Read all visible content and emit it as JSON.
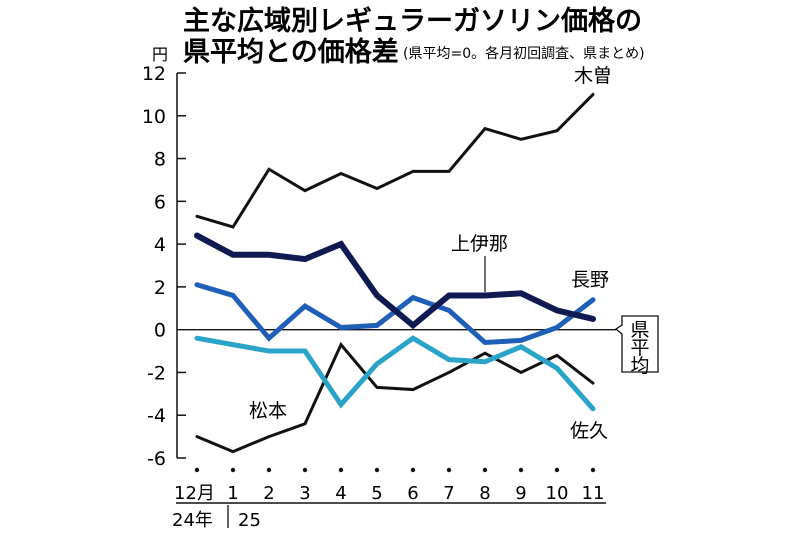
{
  "chart_data": {
    "type": "line",
    "title_line1": "主な広域別レギュラーガソリン価格の",
    "title_line2": "県平均との価格差",
    "subtitle": "(県平均=0。各月初回調査、県まとめ)",
    "ylabel": "円",
    "xlabel": "",
    "ylim": [
      -6,
      12
    ],
    "yticks": [
      12,
      10,
      8,
      6,
      4,
      2,
      0,
      -2,
      -4,
      -6
    ],
    "ytick_labels": [
      "12",
      "10",
      "8",
      "6",
      "4",
      "2",
      "0",
      "-2",
      "-4",
      "-6"
    ],
    "categories": [
      "12月",
      "1",
      "2",
      "3",
      "4",
      "5",
      "6",
      "7",
      "8",
      "9",
      "10",
      "11"
    ],
    "year_labels": [
      "24年",
      "25"
    ],
    "baseline_label": [
      "県",
      "平",
      "均"
    ],
    "grid": false,
    "series": [
      {
        "name": "木曽",
        "color": "#111111",
        "values": [
          5.3,
          4.8,
          7.5,
          6.5,
          7.3,
          6.6,
          7.4,
          7.4,
          9.4,
          8.9,
          9.3,
          11.0
        ]
      },
      {
        "name": "上伊那",
        "color": "#101a52",
        "values": [
          4.4,
          3.5,
          3.5,
          3.3,
          4.0,
          1.6,
          0.2,
          1.6,
          1.6,
          1.7,
          0.9,
          0.5
        ]
      },
      {
        "name": "長野",
        "color": "#1f5fb8",
        "values": [
          2.1,
          1.6,
          -0.4,
          1.1,
          0.1,
          0.2,
          1.5,
          0.9,
          -0.6,
          -0.5,
          0.1,
          1.4
        ]
      },
      {
        "name": "佐久",
        "color": "#2aa3c8",
        "values": [
          -0.4,
          -0.7,
          -1.0,
          -1.0,
          -3.5,
          -1.6,
          -0.4,
          -1.4,
          -1.5,
          -0.8,
          -1.8,
          -3.7
        ]
      },
      {
        "name": "松本",
        "color": "#111111",
        "values": [
          -5.0,
          -5.7,
          -5.0,
          -4.4,
          -0.7,
          -2.7,
          -2.8,
          -2.0,
          -1.1,
          -2.0,
          -1.2,
          -2.5
        ]
      }
    ]
  }
}
